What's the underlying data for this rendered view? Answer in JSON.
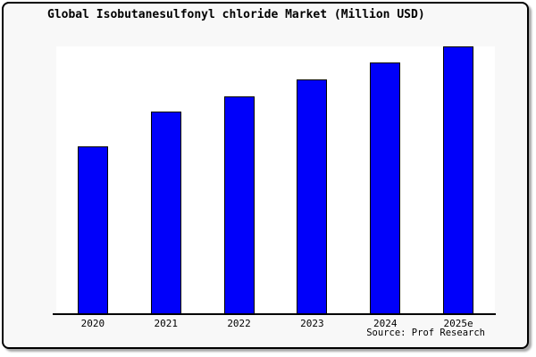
{
  "card": {
    "background": "#f8f8f8",
    "border_color": "#000000"
  },
  "source": "Source: Prof Research",
  "chart_data": {
    "type": "bar",
    "title": "Global Isobutanesulfonyl chloride Market (Million USD)",
    "categories": [
      "2020",
      "2021",
      "2022",
      "2023",
      "2024",
      "2025e"
    ],
    "values": [
      62.8,
      75.6,
      81.4,
      87.7,
      93.9,
      100
    ],
    "value_note": "no numeric y-axis shown; values are relative bar heights with 2025e = 100",
    "xlabel": "",
    "ylabel": "",
    "ylim": [
      0,
      100
    ],
    "grid": false,
    "legend": false,
    "bar_color": "#0000fa",
    "bar_border_color": "#000000",
    "plot_background": "#ffffff",
    "source": "Source: Prof Research"
  }
}
